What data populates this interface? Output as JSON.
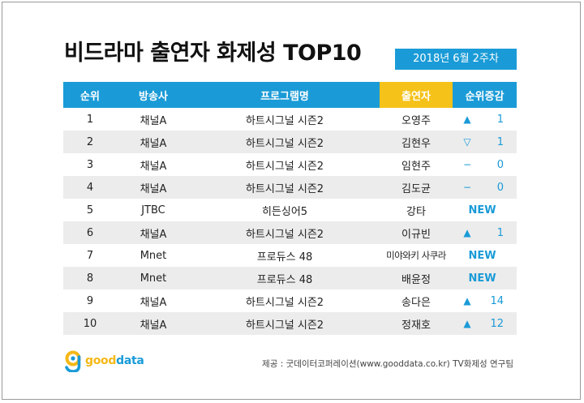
{
  "title": "비드라마 출연자 화제성 TOP10",
  "week_badge": "2018년  6월 2주차",
  "headers": [
    "순위",
    "방송사",
    "프로그램명",
    "출연자",
    "순위증감"
  ],
  "rows": [
    {
      "rank": "1",
      "channel": "채널A",
      "program": "하트시그널 시즌2",
      "cast": "오영주",
      "symbol": "▲",
      "change": "1"
    },
    {
      "rank": "2",
      "channel": "채널A",
      "program": "하트시그널 시즌2",
      "cast": "김현우",
      "symbol": "▽",
      "change": "1"
    },
    {
      "rank": "3",
      "channel": "채널A",
      "program": "하트시그널 시즌2",
      "cast": "임현주",
      "symbol": "−",
      "change": "0"
    },
    {
      "rank": "4",
      "channel": "채널A",
      "program": "하트시그널 시즌2",
      "cast": "김도균",
      "symbol": "−",
      "change": "0"
    },
    {
      "rank": "5",
      "channel": "JTBC",
      "program": "히든싱어5",
      "cast": "강타",
      "symbol": "",
      "change": "NEW"
    },
    {
      "rank": "6",
      "channel": "채널A",
      "program": "하트시그널 시즌2",
      "cast": "이규빈",
      "symbol": "▲",
      "change": "1"
    },
    {
      "rank": "7",
      "channel": "Mnet",
      "program": "프로듀스 48",
      "cast": "미야와키 사쿠라",
      "symbol": "",
      "change": "NEW"
    },
    {
      "rank": "8",
      "channel": "Mnet",
      "program": "프로듀스 48",
      "cast": "배윤정",
      "symbol": "",
      "change": "NEW"
    },
    {
      "rank": "9",
      "channel": "채널A",
      "program": "하트시그널 시즌2",
      "cast": "송다은",
      "symbol": "▲",
      "change": "14"
    },
    {
      "rank": "10",
      "channel": "채널A",
      "program": "하트시그널 시즌2",
      "cast": "정재호",
      "symbol": "▲",
      "change": "12"
    }
  ],
  "logo": {
    "part1": "good",
    "part2": "data",
    "icon": "gooddata-logo-icon"
  },
  "source": "제공 : 굿데이터코퍼레이션(www.gooddata.co.kr) TV화제성 연구팀",
  "colors": {
    "header_blue": "#1a9bd7",
    "header_yellow": "#f5c21a",
    "row_shade": "#ececec"
  }
}
